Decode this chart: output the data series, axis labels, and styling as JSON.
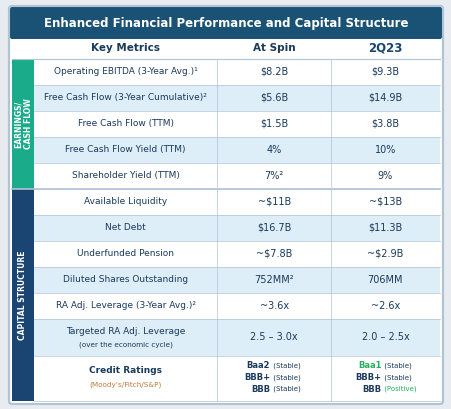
{
  "title": "Enhanced Financial Performance and Capital Structure",
  "title_bg": "#1a5276",
  "title_color": "#ffffff",
  "header_labels": [
    "Key Metrics",
    "At Spin",
    "2Q23"
  ],
  "section1_color": "#1aab8a",
  "section2_color": "#1a4572",
  "rows": [
    {
      "metric": "Operating EBITDA",
      "metric_sub": " (3-Year Avg.)¹",
      "at_spin": "$8.2B",
      "q2_23": "$9.3B",
      "section": 1,
      "shaded": false
    },
    {
      "metric": "Free Cash Flow",
      "metric_sub": " (3-Year Cumulative)²",
      "at_spin": "$5.6B",
      "q2_23": "$14.9B",
      "section": 1,
      "shaded": true
    },
    {
      "metric": "Free Cash Flow",
      "metric_sub": " (TTM)",
      "at_spin": "$1.5B",
      "q2_23": "$3.8B",
      "section": 1,
      "shaded": false
    },
    {
      "metric": "Free Cash Flow Yield",
      "metric_sub": " (TTM)",
      "at_spin": "4%",
      "q2_23": "10%",
      "section": 1,
      "shaded": true
    },
    {
      "metric": "Shareholder Yield",
      "metric_sub": " (TTM)",
      "at_spin": "7%²",
      "q2_23": "9%",
      "section": 1,
      "shaded": false
    },
    {
      "metric": "Available Liquidity",
      "metric_sub": "",
      "at_spin": "~$11B",
      "q2_23": "~$13B",
      "section": 2,
      "shaded": false
    },
    {
      "metric": "Net Debt",
      "metric_sub": "",
      "at_spin": "$16.7B",
      "q2_23": "$11.3B",
      "section": 2,
      "shaded": true
    },
    {
      "metric": "Underfunded Pension",
      "metric_sub": "",
      "at_spin": "~$7.8B",
      "q2_23": "~$2.9B",
      "section": 2,
      "shaded": false
    },
    {
      "metric": "Diluted Shares Outstanding",
      "metric_sub": "",
      "at_spin": "752MM²",
      "q2_23": "706MM",
      "section": 2,
      "shaded": true
    },
    {
      "metric": "RA Adj. Leverage",
      "metric_sub": " (3-Year Avg.)²",
      "at_spin": "~3.6x",
      "q2_23": "~2.6x",
      "section": 2,
      "shaded": false
    },
    {
      "metric": "Targeted RA Adj. Leverage",
      "metric_sub": "(over the economic cycle)",
      "at_spin": "2.5 – 3.0x",
      "q2_23": "2.0 – 2.5x",
      "section": 2,
      "shaded": true
    },
    {
      "metric": "Credit Ratings",
      "metric_sub": "(Moody’s/Fitch/S&P)",
      "at_spin": "",
      "q2_23": "",
      "section": 2,
      "shaded": false
    }
  ],
  "credit_at_spin": [
    {
      "main": "Baa2",
      "sub": " (Stable)",
      "main_color": "#1a3a5c",
      "sub_color": "#1a3a5c"
    },
    {
      "main": "BBB+",
      "sub": " (Stable)",
      "main_color": "#1a3a5c",
      "sub_color": "#1a3a5c"
    },
    {
      "main": "BBB",
      "sub": " (Stable)",
      "main_color": "#1a3a5c",
      "sub_color": "#1a3a5c"
    }
  ],
  "credit_q2_23": [
    {
      "main": "Baa1",
      "sub": " (Stable)",
      "main_color": "#27ae60",
      "sub_color": "#1a3a5c"
    },
    {
      "main": "BBB+",
      "sub": " (Stable)",
      "main_color": "#1a3a5c",
      "sub_color": "#1a3a5c"
    },
    {
      "main": "BBB",
      "sub": " (Positive)",
      "main_color": "#1a3a5c",
      "sub_color": "#27ae60"
    }
  ],
  "shaded_color": "#ddeef8",
  "white_color": "#ffffff",
  "text_color": "#1a3a5c",
  "outer_bg": "#e8ecf0",
  "border_color": "#b0c4d8"
}
